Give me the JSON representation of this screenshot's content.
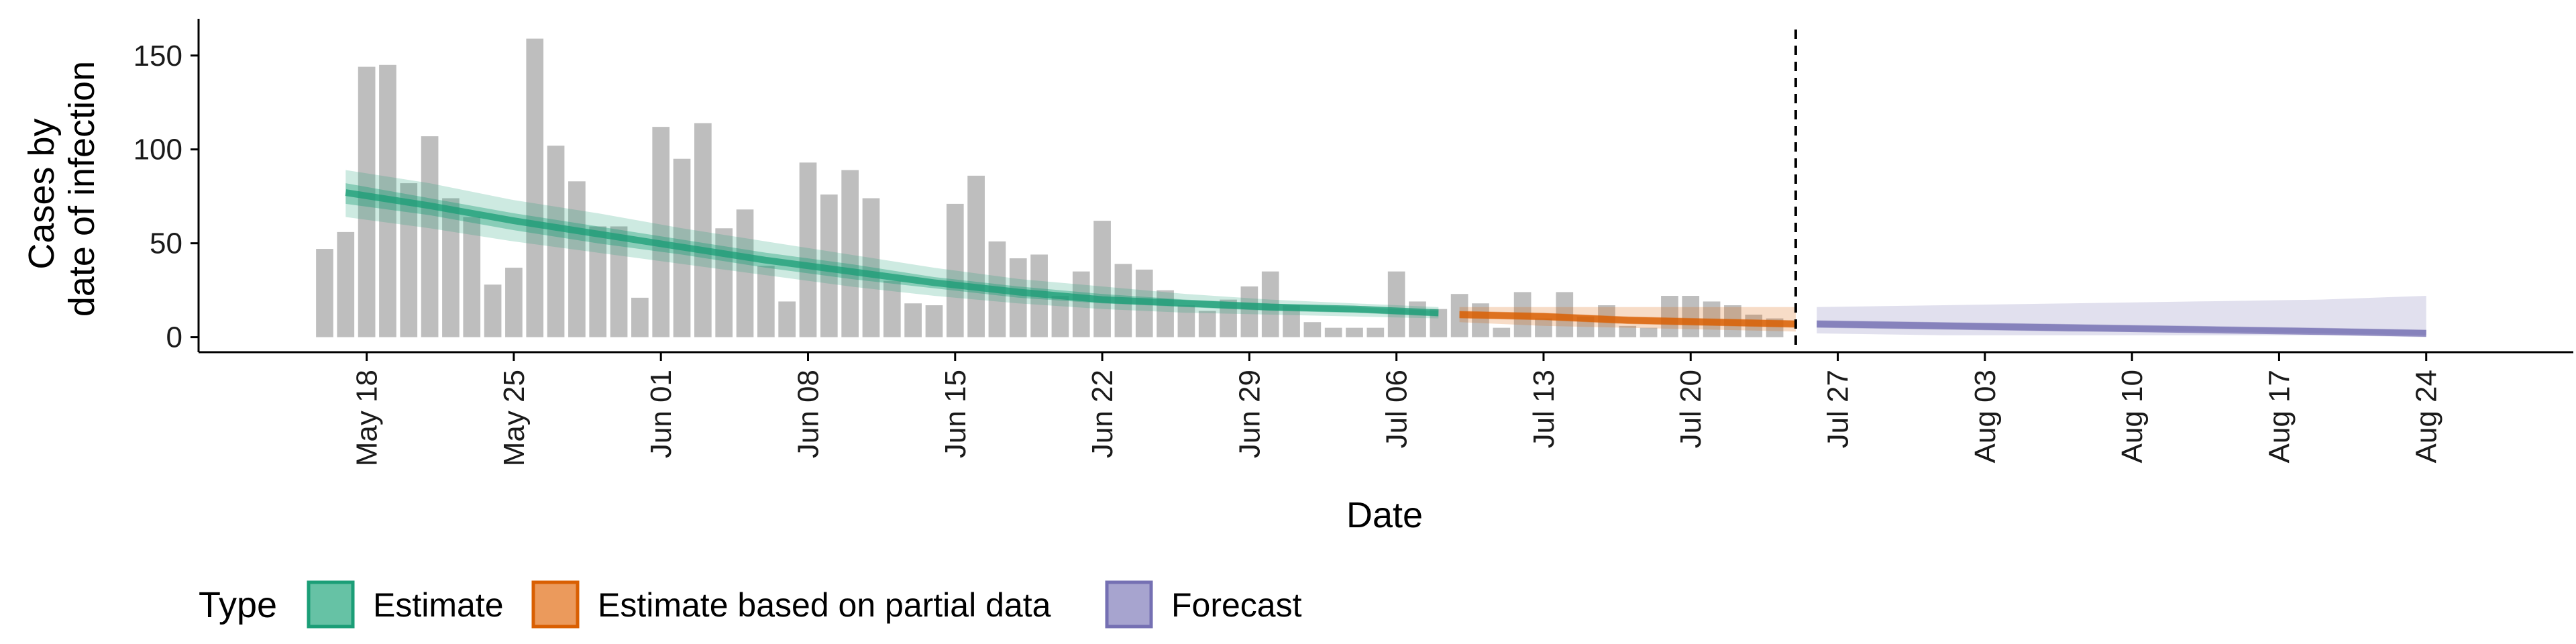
{
  "chart_data": {
    "type": "bar",
    "xlabel": "Date",
    "ylabel_lines": [
      "Cases by",
      "date of infection"
    ],
    "ylim": [
      -8,
      166
    ],
    "yticks": [
      0,
      50,
      100,
      150
    ],
    "xlim": [
      "2020-05-10",
      "2020-08-31"
    ],
    "xticks": [
      {
        "date": "2020-05-18",
        "label": "May 18"
      },
      {
        "date": "2020-05-25",
        "label": "May 25"
      },
      {
        "date": "2020-06-01",
        "label": "Jun 01"
      },
      {
        "date": "2020-06-08",
        "label": "Jun 08"
      },
      {
        "date": "2020-06-15",
        "label": "Jun 15"
      },
      {
        "date": "2020-06-22",
        "label": "Jun 22"
      },
      {
        "date": "2020-06-29",
        "label": "Jun 29"
      },
      {
        "date": "2020-07-06",
        "label": "Jul 06"
      },
      {
        "date": "2020-07-13",
        "label": "Jul 13"
      },
      {
        "date": "2020-07-20",
        "label": "Jul 20"
      },
      {
        "date": "2020-07-27",
        "label": "Jul 27"
      },
      {
        "date": "2020-08-03",
        "label": "Aug 03"
      },
      {
        "date": "2020-08-10",
        "label": "Aug 10"
      },
      {
        "date": "2020-08-17",
        "label": "Aug 17"
      },
      {
        "date": "2020-08-24",
        "label": "Aug 24"
      }
    ],
    "bar_color": "#bebebe",
    "bars": {
      "start_date": "2020-05-16",
      "values": [
        47,
        56,
        144,
        145,
        82,
        107,
        74,
        64,
        28,
        37,
        159,
        102,
        83,
        59,
        59,
        21,
        112,
        95,
        114,
        58,
        68,
        38,
        19,
        93,
        76,
        89,
        74,
        30,
        18,
        17,
        71,
        86,
        51,
        42,
        44,
        22,
        35,
        62,
        39,
        36,
        25,
        17,
        14,
        20,
        27,
        35,
        17,
        8,
        5,
        5,
        5,
        35,
        19,
        15,
        23,
        18,
        5,
        24,
        10,
        24,
        11,
        17,
        6,
        5,
        22,
        22,
        19,
        17,
        12,
        10
      ]
    },
    "forecast_start": "2020-07-25",
    "legend": {
      "title": "Type",
      "position": "bottom",
      "entries": [
        {
          "label": "Estimate",
          "fill": "#66c2a5",
          "stroke": "#1b9e77"
        },
        {
          "label": "Estimate based on partial data",
          "fill": "#eb9a5c",
          "stroke": "#d95f02"
        },
        {
          "label": "Forecast",
          "fill": "#a7a4cf",
          "stroke": "#7570b3"
        }
      ]
    },
    "series": [
      {
        "name": "Estimate",
        "color": "#1b9e77",
        "dates": [
          "2020-05-17",
          "2020-05-21",
          "2020-05-25",
          "2020-05-29",
          "2020-06-02",
          "2020-06-06",
          "2020-06-10",
          "2020-06-14",
          "2020-06-18",
          "2020-06-22",
          "2020-06-26",
          "2020-06-30",
          "2020-07-04",
          "2020-07-08"
        ],
        "median": [
          77,
          70,
          62,
          55,
          48,
          41,
          35,
          29,
          24,
          20,
          18,
          16,
          15,
          13
        ],
        "inner_low": [
          71,
          65,
          57,
          50,
          44,
          37,
          31,
          26,
          21,
          18,
          16,
          14,
          13,
          11
        ],
        "inner_high": [
          82,
          74,
          66,
          59,
          52,
          45,
          39,
          32,
          27,
          23,
          20,
          18,
          16,
          14
        ],
        "outer_low": [
          64,
          58,
          51,
          45,
          39,
          33,
          27,
          22,
          18,
          15,
          13,
          12,
          11,
          10
        ],
        "outer_high": [
          89,
          82,
          73,
          66,
          58,
          51,
          44,
          37,
          31,
          27,
          23,
          20,
          18,
          16
        ]
      },
      {
        "name": "Estimate based on partial data",
        "color": "#d95f02",
        "dates": [
          "2020-07-09",
          "2020-07-13",
          "2020-07-17",
          "2020-07-21",
          "2020-07-25"
        ],
        "median": [
          12,
          11,
          9,
          8,
          7
        ],
        "inner_low": [
          10,
          9,
          7,
          6,
          5
        ],
        "inner_high": [
          14,
          13,
          11,
          10,
          9
        ],
        "outer_low": [
          8,
          6,
          5,
          4,
          3
        ],
        "outer_high": [
          16,
          16,
          16,
          16,
          16
        ]
      },
      {
        "name": "Forecast",
        "color": "#7570b3",
        "dates": [
          "2020-07-26",
          "2020-08-01",
          "2020-08-07",
          "2020-08-13",
          "2020-08-19",
          "2020-08-24"
        ],
        "median": [
          7,
          6,
          5,
          4,
          3,
          2
        ],
        "inner_low": [
          5,
          4,
          3,
          3,
          2,
          1
        ],
        "inner_high": [
          9,
          8,
          7,
          6,
          5,
          4
        ],
        "outer_low": [
          2,
          1,
          1,
          1,
          1,
          0
        ],
        "outer_high": [
          16,
          17,
          18,
          19,
          20,
          22
        ]
      }
    ]
  }
}
